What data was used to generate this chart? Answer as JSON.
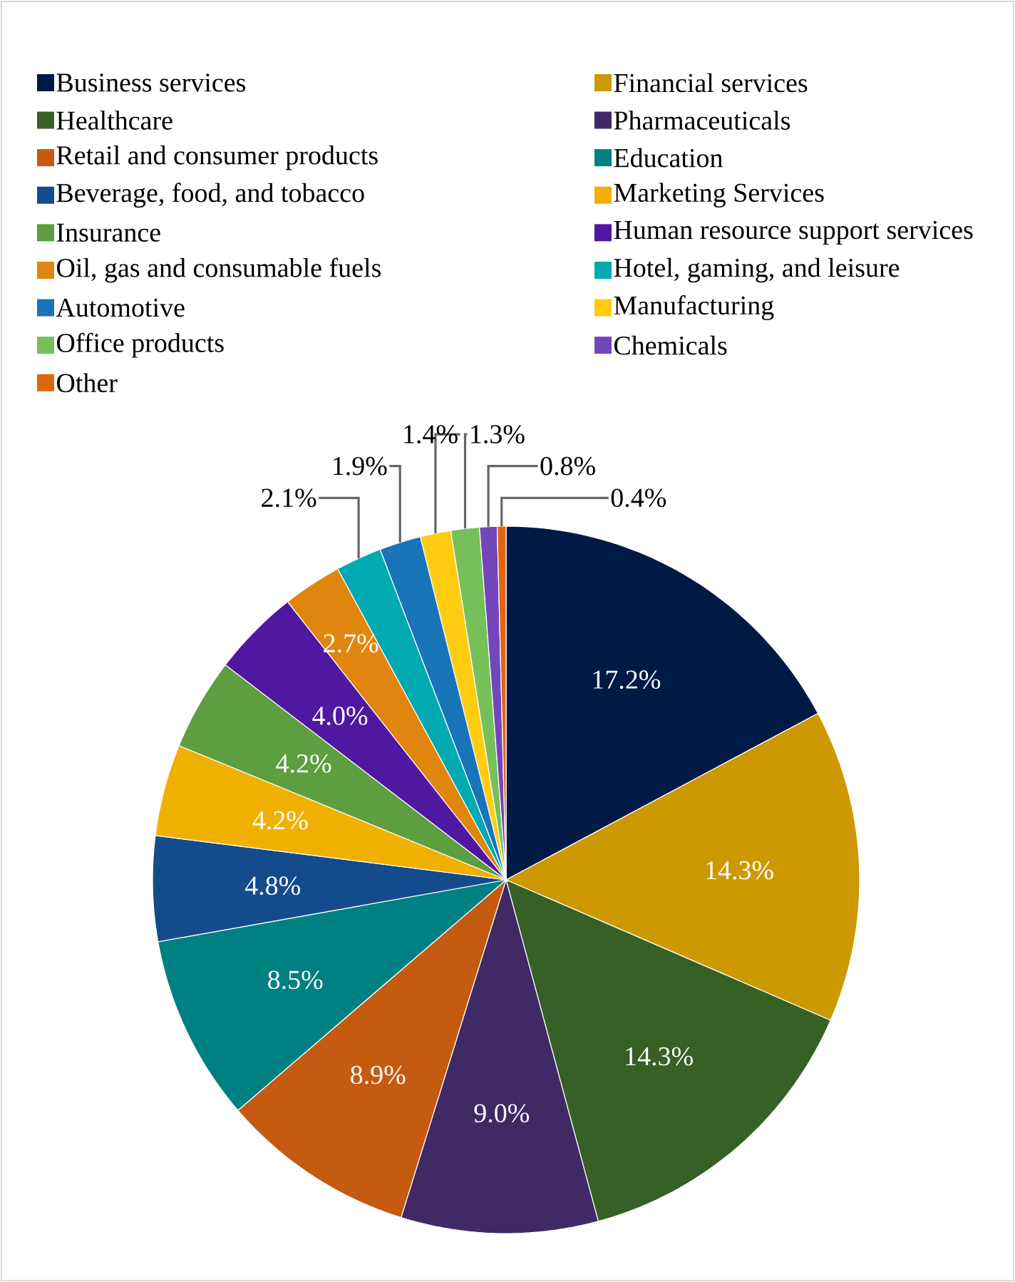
{
  "chart_data": {
    "type": "pie",
    "categories": [
      "Business services",
      "Financial services",
      "Healthcare",
      "Pharmaceuticals",
      "Retail and consumer products",
      "Education",
      "Beverage, food, and tobacco",
      "Marketing Services",
      "Insurance",
      "Human resource support services",
      "Oil, gas and consumable fuels",
      "Hotel, gaming, and leisure",
      "Automotive",
      "Manufacturing",
      "Office products",
      "Chemicals",
      "Other"
    ],
    "values": [
      17.2,
      14.3,
      14.3,
      9.0,
      8.9,
      8.5,
      4.8,
      4.2,
      4.2,
      4.0,
      2.7,
      2.1,
      1.9,
      1.4,
      1.3,
      0.8,
      0.4
    ],
    "value_labels": [
      "17.2%",
      "14.3%",
      "14.3%",
      "9.0%",
      "8.9%",
      "8.5%",
      "4.8%",
      "4.2%",
      "4.2%",
      "4.0%",
      "2.7%",
      "2.1%",
      "1.9%",
      "1.4%",
      "1.3%",
      "0.8%",
      "0.4%"
    ],
    "colors": [
      "#001a45",
      "#cc9900",
      "#376027",
      "#3f2a66",
      "#c55a11",
      "#008080",
      "#144b8c",
      "#f0b000",
      "#5c9e40",
      "#5018a0",
      "#e0860e",
      "#00aab0",
      "#1a74b8",
      "#ffcc12",
      "#76c05a",
      "#7446bc",
      "#e06510"
    ],
    "legend": "top"
  }
}
